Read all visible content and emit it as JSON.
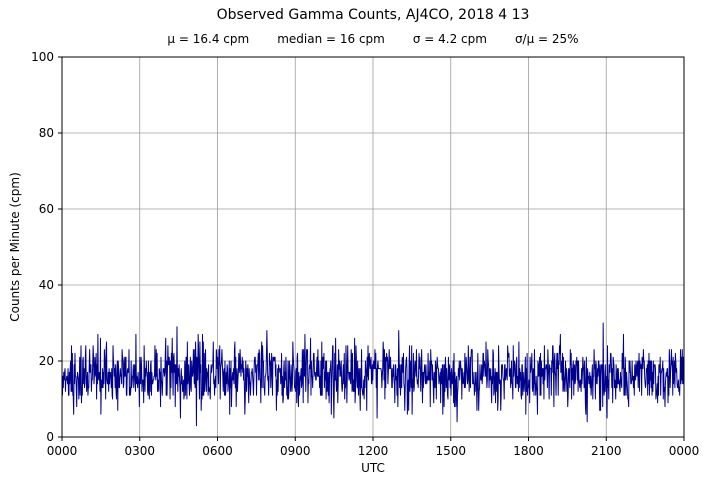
{
  "chart_data": {
    "type": "line",
    "title": "Observed Gamma Counts, AJ4CO, 2018 4 13",
    "stats": {
      "mu": "μ = 16.4 cpm",
      "median": "median = 16 cpm",
      "sigma": "σ = 4.2 cpm",
      "ratio": "σ/μ = 25%"
    },
    "xlabel": "UTC",
    "ylabel": "Counts per Minute (cpm)",
    "ylim": [
      0,
      100
    ],
    "yticks": [
      0,
      20,
      40,
      60,
      80,
      100
    ],
    "xtick_labels": [
      "0000",
      "0300",
      "0600",
      "0900",
      "1200",
      "1500",
      "1800",
      "2100",
      "0000"
    ],
    "x_span_minutes": 1440,
    "grid": true,
    "legend": false,
    "colors": {
      "line": "#00008B",
      "grid": "#9e9e9e",
      "axis": "#000000"
    },
    "series": [
      {
        "name": "observed gamma counts",
        "units": "cpm",
        "n_points": 1440,
        "mean": 16.4,
        "median": 16,
        "sigma": 4.2,
        "approx_min": 4,
        "approx_max": 30,
        "distribution": "poisson-like integer counts per minute",
        "seed": 20180413
      }
    ]
  }
}
